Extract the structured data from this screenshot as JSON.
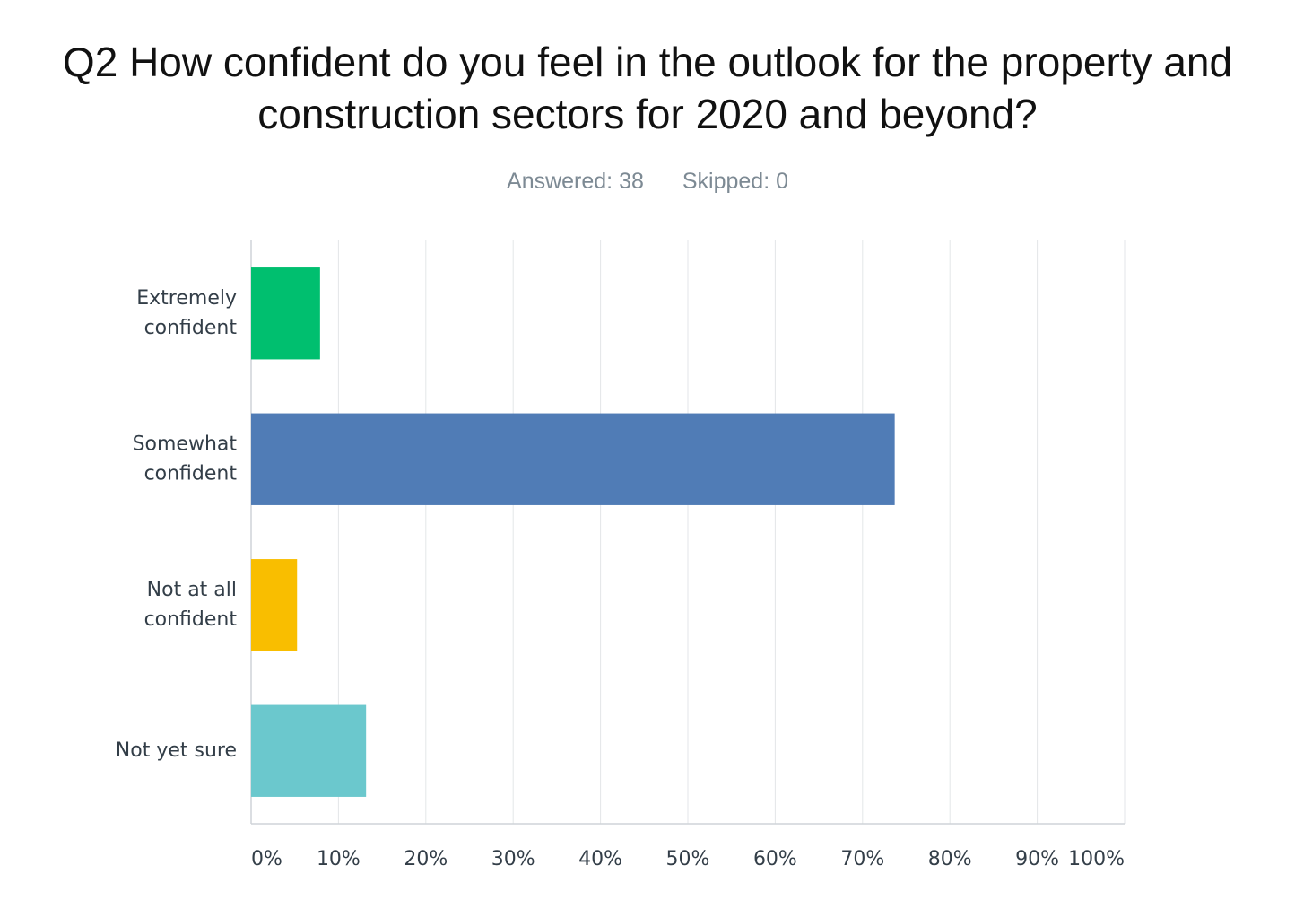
{
  "chart_data": {
    "type": "bar",
    "orientation": "horizontal",
    "title_lines": [
      "Q2 How confident do you feel in the outlook for the property and",
      "construction sectors for 2020 and beyond?"
    ],
    "answered": "Answered: 38",
    "skipped": "Skipped: 0",
    "categories": [
      [
        "Extremely",
        "confident"
      ],
      [
        "Somewhat",
        "confident"
      ],
      [
        "Not at all",
        "confident"
      ],
      [
        "Not yet sure"
      ]
    ],
    "values": [
      7.89,
      73.68,
      5.26,
      13.16
    ],
    "colors": [
      "#00bf6f",
      "#507cb6",
      "#f9be00",
      "#6bc8cd"
    ],
    "xlim": [
      0,
      100
    ],
    "xticks": [
      0,
      10,
      20,
      30,
      40,
      50,
      60,
      70,
      80,
      90,
      100
    ],
    "xtick_labels": [
      "0%",
      "10%",
      "20%",
      "30%",
      "40%",
      "50%",
      "60%",
      "70%",
      "80%",
      "90%",
      "100%"
    ],
    "grid": true
  }
}
